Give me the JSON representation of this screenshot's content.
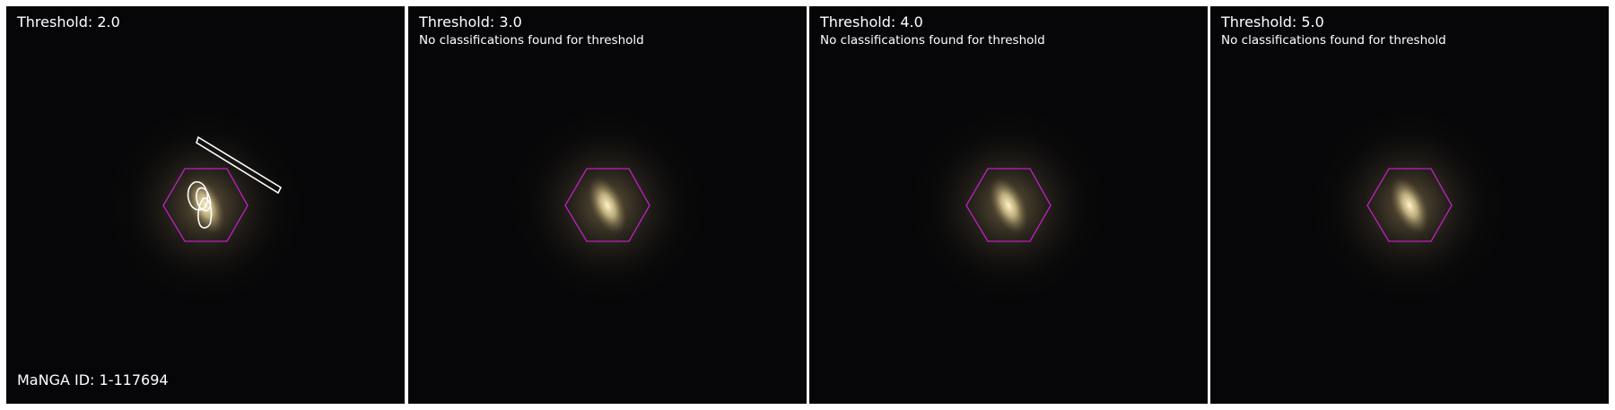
{
  "panels": [
    {
      "title": "Threshold: 2.0",
      "note": "",
      "has_contours": true
    },
    {
      "title": "Threshold: 3.0",
      "note": "No classifications found for threshold",
      "has_contours": false
    },
    {
      "title": "Threshold: 4.0",
      "note": "No classifications found for threshold",
      "has_contours": false
    },
    {
      "title": "Threshold: 5.0",
      "note": "No classifications found for threshold",
      "has_contours": false
    }
  ],
  "manga_id_label": "MaNGA ID: 1-117694",
  "colors": {
    "hexagon": "#c020c0",
    "contour": "#ffffff",
    "galaxy_core": "#fff4c8",
    "background": "#060608"
  },
  "icons": [
    "ifu-hexagon-outline",
    "galaxy-image",
    "classification-contour"
  ]
}
